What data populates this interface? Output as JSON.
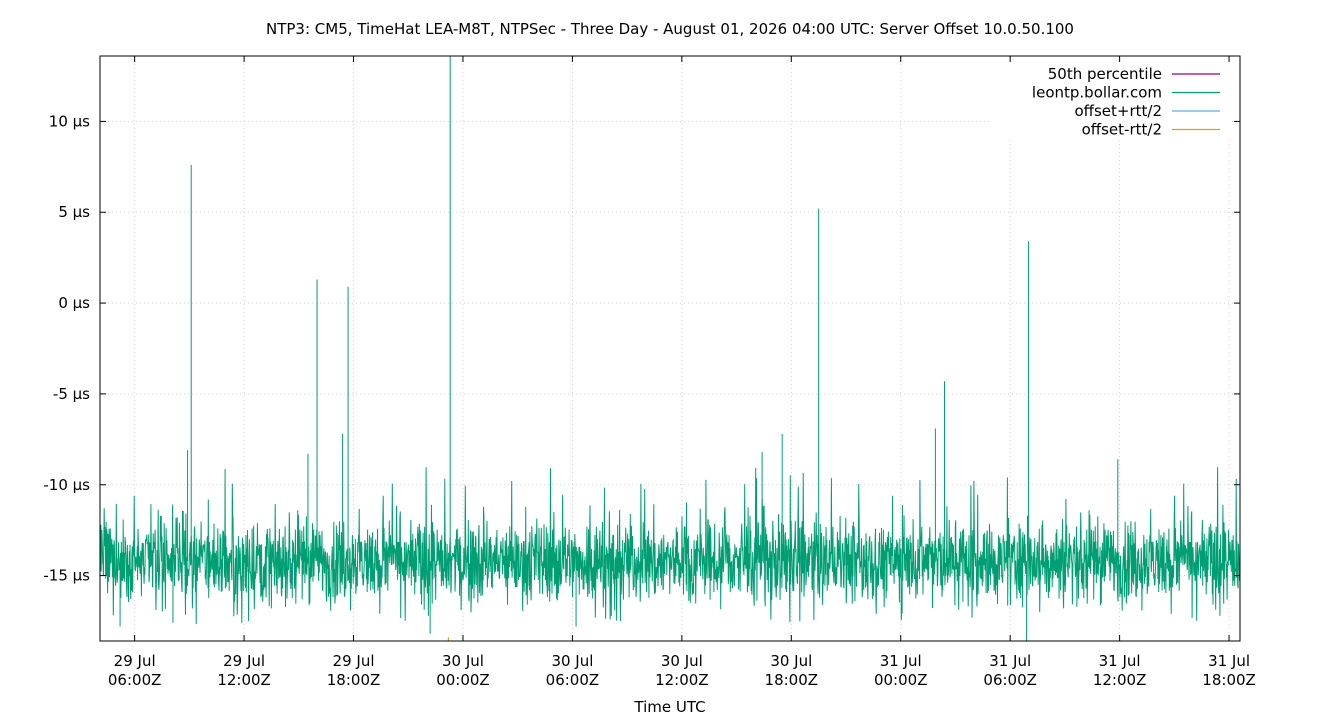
{
  "chart_data": {
    "type": "line",
    "title": "NTP3: CM5, TimeHat LEA-M8T, NTPSec - Three Day - August 01, 2026 04:00 UTC: Server Offset 10.0.50.100",
    "xlabel": "Time UTC",
    "ylabel": "",
    "x_unit": "hours since 29 Jul 00:00Z",
    "xlim": [
      4.1,
      66.6
    ],
    "ylim": [
      -18.6,
      13.6
    ],
    "y_ticks": [
      {
        "value": 10,
        "label": "10 µs"
      },
      {
        "value": 5,
        "label": "5 µs"
      },
      {
        "value": 0,
        "label": "0 µs"
      },
      {
        "value": -5,
        "label": "-5 µs"
      },
      {
        "value": -10,
        "label": "-10 µs"
      },
      {
        "value": -15,
        "label": "-15 µs"
      }
    ],
    "x_ticks": [
      {
        "value": 6,
        "line1": "29 Jul",
        "line2": "06:00Z"
      },
      {
        "value": 12,
        "line1": "29 Jul",
        "line2": "12:00Z"
      },
      {
        "value": 18,
        "line1": "29 Jul",
        "line2": "18:00Z"
      },
      {
        "value": 24,
        "line1": "30 Jul",
        "line2": "00:00Z"
      },
      {
        "value": 30,
        "line1": "30 Jul",
        "line2": "06:00Z"
      },
      {
        "value": 36,
        "line1": "30 Jul",
        "line2": "12:00Z"
      },
      {
        "value": 42,
        "line1": "30 Jul",
        "line2": "18:00Z"
      },
      {
        "value": 48,
        "line1": "31 Jul",
        "line2": "00:00Z"
      },
      {
        "value": 54,
        "line1": "31 Jul",
        "line2": "06:00Z"
      },
      {
        "value": 60,
        "line1": "31 Jul",
        "line2": "12:00Z"
      },
      {
        "value": 66,
        "line1": "31 Jul",
        "line2": "18:00Z"
      }
    ],
    "grid": true,
    "legend_position": "top-right",
    "series": [
      {
        "name": "50th percentile",
        "color": "#94009a",
        "style": "line",
        "values": []
      },
      {
        "name": "leontp.bollar.com",
        "color": "#009e73",
        "style": "noisy-band",
        "noise_center": -14.2,
        "noise_range": [
          -16.5,
          -11.5
        ],
        "spikes": [
          {
            "x": 4.15,
            "y": -12.2
          },
          {
            "x": 5.2,
            "y": -17.8
          },
          {
            "x": 8.1,
            "y": -17.6
          },
          {
            "x": 8.9,
            "y": -8.1
          },
          {
            "x": 9.1,
            "y": 7.6
          },
          {
            "x": 15.5,
            "y": -8.3
          },
          {
            "x": 16.0,
            "y": 1.3
          },
          {
            "x": 17.4,
            "y": -7.2
          },
          {
            "x": 17.7,
            "y": 0.9
          },
          {
            "x": 22.2,
            "y": -18.2
          },
          {
            "x": 23.3,
            "y": 13.6
          },
          {
            "x": 30.2,
            "y": -17.8
          },
          {
            "x": 40.4,
            "y": -8.2
          },
          {
            "x": 41.5,
            "y": -7.2
          },
          {
            "x": 43.5,
            "y": 5.2
          },
          {
            "x": 49.9,
            "y": -6.9
          },
          {
            "x": 50.4,
            "y": -4.3
          },
          {
            "x": 54.9,
            "y": -18.6
          },
          {
            "x": 55.0,
            "y": 3.4
          },
          {
            "x": 59.9,
            "y": -8.6
          },
          {
            "x": 66.6,
            "y": -12.5
          }
        ]
      },
      {
        "name": "offset+rtt/2",
        "color": "#56b4e9",
        "style": "line",
        "values": []
      },
      {
        "name": "offset-rtt/2",
        "color": "#e69f00",
        "style": "line",
        "marks": [
          {
            "x": 23.2,
            "y": -18.4
          }
        ]
      }
    ]
  }
}
